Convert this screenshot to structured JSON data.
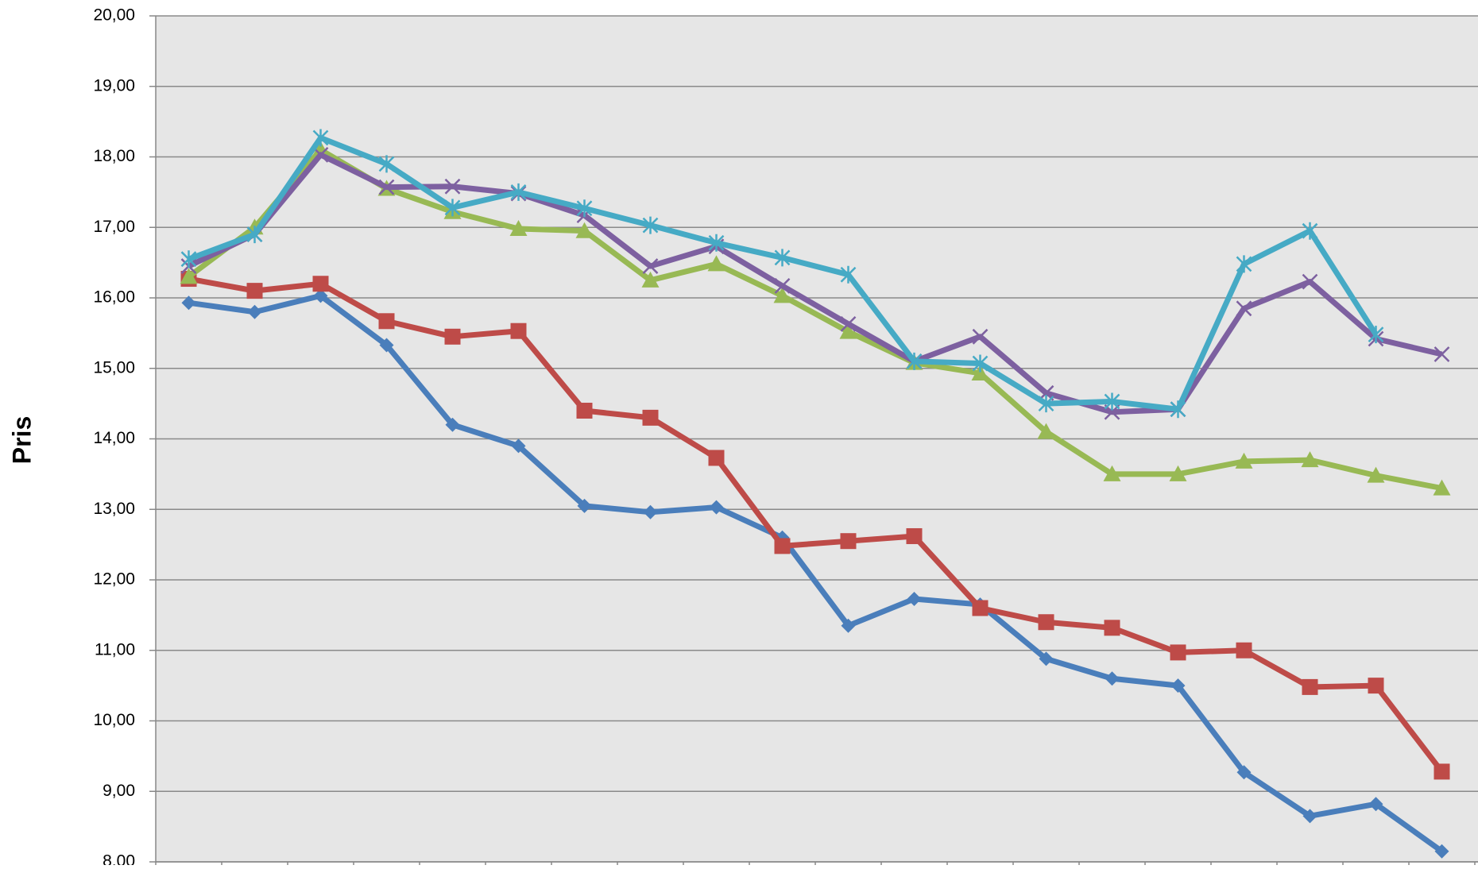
{
  "chart_data": {
    "type": "line",
    "y_label": "Pris",
    "categories": [
      null,
      null,
      null,
      null,
      null,
      null,
      null,
      null,
      null,
      null,
      null,
      null,
      null,
      null,
      null,
      null,
      null,
      null,
      null,
      null
    ],
    "series": [
      {
        "color": "#4a7ebb",
        "marker": "diamond",
        "values": [
          15.93,
          15.8,
          16.03,
          15.33,
          14.2,
          13.9,
          13.05,
          12.96,
          13.03,
          12.6,
          11.35,
          11.73,
          11.65,
          10.88,
          10.6,
          10.5,
          9.27,
          8.65,
          8.82,
          8.15
        ]
      },
      {
        "color": "#be4b48",
        "marker": "square",
        "values": [
          16.27,
          16.1,
          16.2,
          15.67,
          15.45,
          15.53,
          14.4,
          14.3,
          13.73,
          12.48,
          12.55,
          12.62,
          11.6,
          11.4,
          11.32,
          10.97,
          11.0,
          10.48,
          10.5,
          9.28
        ]
      },
      {
        "color": "#98b954",
        "marker": "triangle",
        "values": [
          16.3,
          17.0,
          18.1,
          17.55,
          17.22,
          16.98,
          16.95,
          16.25,
          16.48,
          16.03,
          15.52,
          15.08,
          14.93,
          14.1,
          13.5,
          13.5,
          13.68,
          13.7,
          13.48,
          13.3
        ]
      },
      {
        "color": "#7d60a0",
        "marker": "x",
        "values": [
          16.45,
          16.9,
          18.03,
          17.57,
          17.58,
          17.48,
          17.17,
          16.45,
          16.73,
          16.17,
          15.63,
          15.1,
          15.45,
          14.65,
          14.38,
          14.42,
          15.85,
          16.23,
          15.42,
          15.2
        ]
      },
      {
        "color": "#46aac5",
        "marker": "star",
        "values": [
          16.55,
          16.9,
          18.27,
          17.9,
          17.28,
          17.5,
          17.27,
          17.03,
          16.78,
          16.57,
          16.33,
          15.1,
          15.07,
          14.5,
          14.53,
          14.42,
          16.48,
          16.95,
          15.48,
          null
        ]
      }
    ],
    "ylim": [
      8,
      20
    ],
    "yticks": [
      {
        "value": 8,
        "label": "8,00"
      },
      {
        "value": 9,
        "label": "9,00"
      },
      {
        "value": 10,
        "label": "10,00"
      },
      {
        "value": 11,
        "label": "11,00"
      },
      {
        "value": 12,
        "label": "12,00"
      },
      {
        "value": 13,
        "label": "13,00"
      },
      {
        "value": 14,
        "label": "14,00"
      },
      {
        "value": 15,
        "label": "15,00"
      },
      {
        "value": 16,
        "label": "16,00"
      },
      {
        "value": 17,
        "label": "17,00"
      },
      {
        "value": 18,
        "label": "18,00"
      },
      {
        "value": 19,
        "label": "19,00"
      },
      {
        "value": 20,
        "label": "20,00"
      }
    ],
    "grid": true
  }
}
